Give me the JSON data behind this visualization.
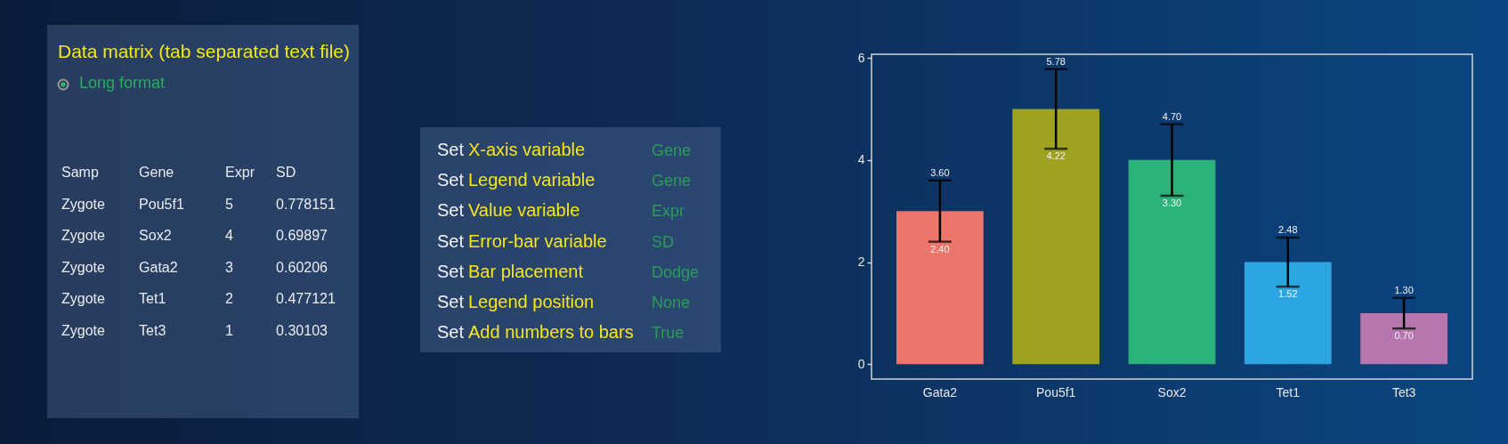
{
  "chart_data": [
    {
      "type": "other",
      "title": "Data matrix (tab separated text file)",
      "annotations": [
        "Long format"
      ],
      "categories": [
        "Samp",
        "Gene",
        "Expr",
        "SD"
      ],
      "cell_labels": [
        [
          "Zygote\tPou5f1\t5\t0.778151"
        ],
        [
          "Zygote\tSox2\t4\t0.69897"
        ],
        [
          "Zygote\tGata2\t3\t0.60206"
        ],
        [
          "Zygote\tTet1\t2\t0.477121"
        ],
        [
          "Zygote\tTet3\t1\t0.30103"
        ]
      ]
    },
    {
      "type": "other",
      "cell_labels": [
        [
          "Set",
          "X-axis variable",
          "Gene"
        ],
        [
          "Set",
          "Legend variable",
          "Gene"
        ],
        [
          "Set",
          "Value variable",
          "Expr"
        ],
        [
          "Set",
          "Error-bar variable",
          "SD"
        ],
        [
          "Set",
          "Bar placement",
          "Dodge"
        ],
        [
          "Set",
          "Legend position",
          "None"
        ],
        [
          "Set",
          "Add numbers to bars",
          "True"
        ]
      ]
    },
    {
      "type": "bar",
      "categories": [
        "Gata2",
        "Pou5f1",
        "Sox2",
        "Tet1",
        "Tet3"
      ],
      "values": [
        3,
        5,
        4,
        2,
        1
      ],
      "colors": [
        "#ec756a",
        "#9fa221",
        "#2cb37a",
        "#2ca6e0",
        "#b577ae"
      ],
      "errors": [
        [
          2.4,
          3.6
        ],
        [
          4.22,
          5.78
        ],
        [
          3.3,
          4.7
        ],
        [
          1.52,
          2.48
        ],
        [
          0.7,
          1.3
        ]
      ],
      "ylim": [
        -0.29,
        6.07
      ],
      "yticks": [
        0,
        2,
        4,
        6
      ],
      "annotations": [
        {
          "text": "3.60",
          "x": "Gata2",
          "y": 3.6
        },
        {
          "text": "2.40",
          "x": "Gata2",
          "y": 2.4
        },
        {
          "text": "5.78",
          "x": "Pou5f1",
          "y": 5.78
        },
        {
          "text": "4.22",
          "x": "Pou5f1",
          "y": 4.22
        },
        {
          "text": "4.70",
          "x": "Sox2",
          "y": 4.7
        },
        {
          "text": "3.30",
          "x": "Sox2",
          "y": 3.3
        },
        {
          "text": "2.48",
          "x": "Tet1",
          "y": 2.48
        },
        {
          "text": "1.52",
          "x": "Tet1",
          "y": 1.52
        },
        {
          "text": "1.30",
          "x": "Tet3",
          "y": 1.3
        },
        {
          "text": "0.70",
          "x": "Tet3",
          "y": 0.7
        }
      ]
    }
  ]
}
